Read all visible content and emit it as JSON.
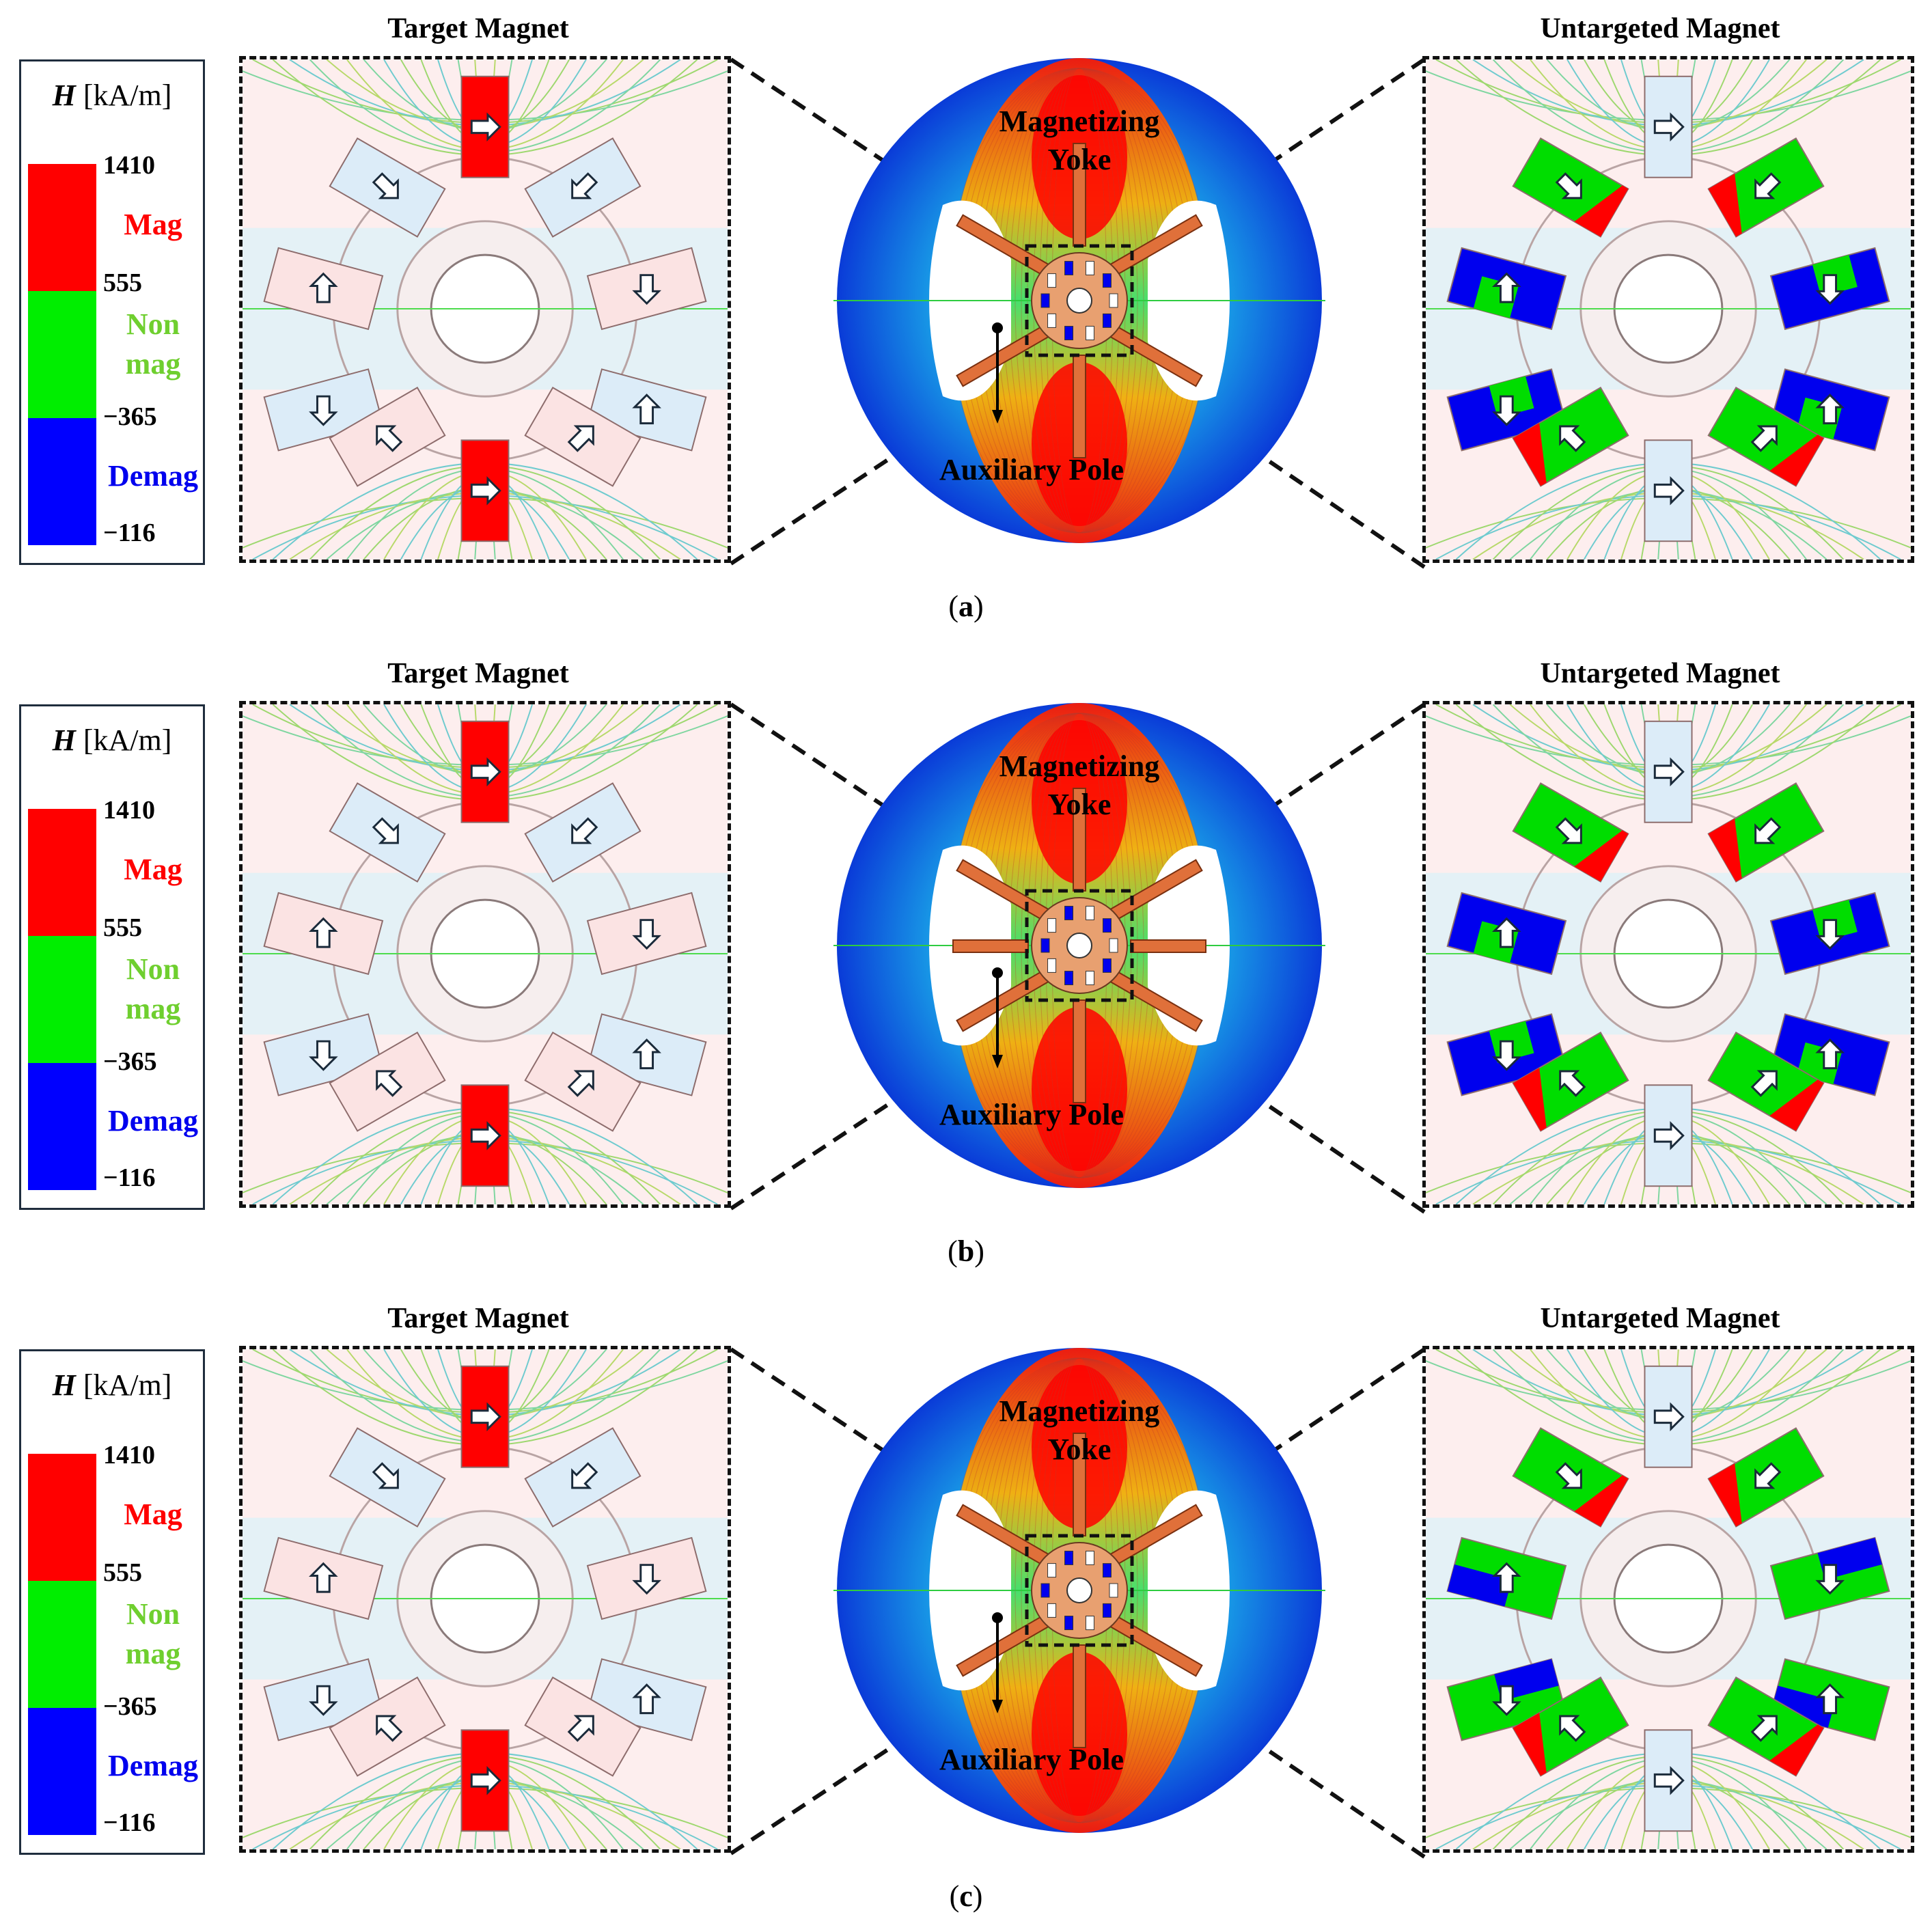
{
  "legend": {
    "quantity": "H",
    "unit": "[kA/m]",
    "ticks": [
      "1410",
      "555",
      "−365",
      "−116"
    ],
    "categories": {
      "mag": "Mag",
      "non_1": "Non",
      "non_2": "mag",
      "demag": "Demag"
    },
    "colors": {
      "mag": "#ff0000",
      "non": "#00ee00",
      "demag": "#0000ff"
    }
  },
  "labels": {
    "target": "Target Magnet",
    "untargeted": "Untargeted Magnet",
    "yoke_1": "Magnetizing",
    "yoke_2": "Yoke",
    "aux": "Auxiliary Pole"
  },
  "panels": [
    {
      "caption": "a",
      "target_states": [
        "mag",
        "pale-blue",
        "pale-blue",
        "pale-red",
        "pale-red",
        "pale-blue",
        "pale-blue",
        "mag",
        "pale-red",
        "pale-red"
      ],
      "untargeted_states": [
        "pale-blue",
        "mixed-red",
        "mixed-red",
        "demag",
        "demag",
        "demag",
        "demag",
        "pale-blue",
        "mixed-red",
        "mixed-red"
      ]
    },
    {
      "caption": "b",
      "target_states": [
        "mag",
        "pale-blue",
        "pale-blue",
        "pale-red",
        "pale-red",
        "pale-blue",
        "pale-blue",
        "mag",
        "pale-red",
        "pale-red"
      ],
      "untargeted_states": [
        "pale-blue",
        "mixed-red",
        "mixed-red",
        "demag",
        "demag",
        "demag",
        "demag",
        "pale-blue",
        "mixed-red",
        "mixed-red"
      ]
    },
    {
      "caption": "c",
      "target_states": [
        "mag",
        "pale-blue",
        "pale-blue",
        "pale-red",
        "pale-red",
        "pale-blue",
        "pale-blue",
        "mag",
        "pale-red",
        "pale-red"
      ],
      "untargeted_states": [
        "pale-blue",
        "mixed-red",
        "mixed-red",
        "mixed-green",
        "mixed-green",
        "mixed-green",
        "mixed-green",
        "pale-blue",
        "mixed-red",
        "mixed-red"
      ]
    }
  ]
}
